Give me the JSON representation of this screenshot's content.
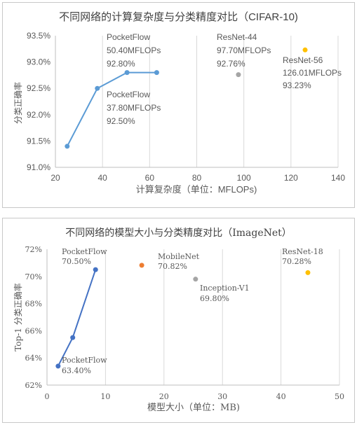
{
  "chart_data": [
    {
      "type": "scatter",
      "title": "不同网络的计算复杂度与分类精度对比（CIFAR-10)",
      "xlabel": "计算复杂度（单位：MFLOPs)",
      "ylabel": "分类正确率",
      "xlim": [
        20,
        140
      ],
      "ylim": [
        91.0,
        93.5
      ],
      "x_ticks": [
        "20",
        "40",
        "60",
        "80",
        "100",
        "120",
        "140"
      ],
      "y_ticks": [
        "91.0%",
        "91.5%",
        "92.0%",
        "92.5%",
        "93.0%",
        "93.5%"
      ],
      "grid": "vertical",
      "series": [
        {
          "name": "PocketFlow",
          "color": "#5b9bd5",
          "line": true,
          "x": [
            25,
            37.8,
            50.4,
            63
          ],
          "y": [
            91.4,
            92.5,
            92.8,
            92.8
          ]
        },
        {
          "name": "ResNet-44",
          "color": "#a5a5a5",
          "line": false,
          "x": [
            97.7
          ],
          "y": [
            92.76
          ]
        },
        {
          "name": "ResNet-56",
          "color": "#ffc000",
          "line": false,
          "x": [
            126.01
          ],
          "y": [
            93.23
          ]
        }
      ],
      "annotations": [
        {
          "lines": [
            "PocketFlow",
            "50.40MFLOPs",
            "92.80%"
          ]
        },
        {
          "lines": [
            "PocketFlow",
            "37.80MFLOPs",
            "92.50%"
          ]
        },
        {
          "lines": [
            "ResNet-44",
            "97.70MFLOPs",
            "92.76%"
          ]
        },
        {
          "lines": [
            "ResNet-56",
            "126.01MFLOPs",
            "93.23%"
          ]
        }
      ]
    },
    {
      "type": "scatter",
      "title": "不同网络的模型大小与分类精度对比（ImageNet）",
      "xlabel": "模型大小（单位：MB)",
      "ylabel": "Top-1 分类正确率",
      "xlim": [
        0,
        50
      ],
      "ylim": [
        62,
        72
      ],
      "x_ticks": [
        "0",
        "10",
        "20",
        "30",
        "40",
        "50"
      ],
      "y_ticks": [
        "62%",
        "64%",
        "66%",
        "68%",
        "70%",
        "72%"
      ],
      "grid": "vertical",
      "series": [
        {
          "name": "PocketFlow",
          "color": "#4472c4",
          "line": true,
          "x": [
            1.9,
            4.4,
            8.3
          ],
          "y": [
            63.4,
            65.5,
            70.5
          ]
        },
        {
          "name": "MobileNet",
          "color": "#ed7d31",
          "line": false,
          "x": [
            16.2
          ],
          "y": [
            70.82
          ]
        },
        {
          "name": "Inception-V1",
          "color": "#a5a5a5",
          "line": false,
          "x": [
            25.4
          ],
          "y": [
            69.8
          ]
        },
        {
          "name": "ResNet-18",
          "color": "#ffc000",
          "line": false,
          "x": [
            44.6
          ],
          "y": [
            70.28
          ]
        }
      ],
      "annotations": [
        {
          "lines": [
            "PocketFlow",
            "70.50%"
          ]
        },
        {
          "lines": [
            "PocketFlow",
            "63.40%"
          ]
        },
        {
          "lines": [
            "MobileNet",
            "70.82%"
          ]
        },
        {
          "lines": [
            "Inception-V1",
            "69.80%"
          ]
        },
        {
          "lines": [
            "ResNet-18",
            "70.28%"
          ]
        }
      ]
    }
  ]
}
